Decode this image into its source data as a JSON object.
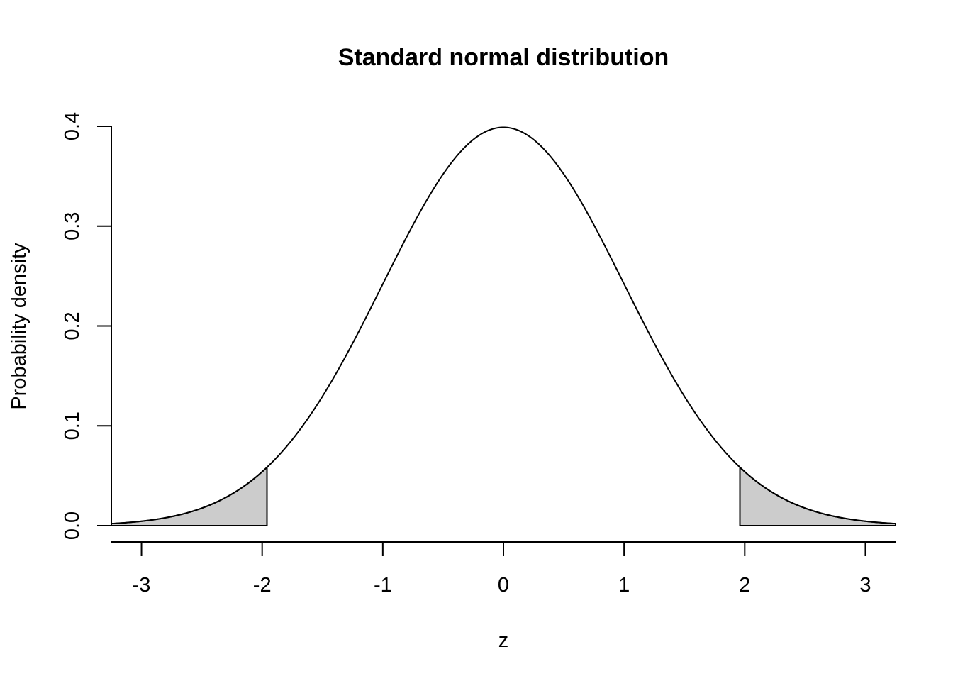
{
  "chart_data": {
    "type": "area",
    "title": "Standard normal distribution",
    "xlabel": "z",
    "ylabel": "Probability density",
    "xlim": [
      -3.25,
      3.25
    ],
    "ylim": [
      0,
      0.4
    ],
    "x_ticks": [
      -3,
      -2,
      -1,
      0,
      1,
      2,
      3
    ],
    "x_tick_labels": [
      "-3",
      "-2",
      "-1",
      "0",
      "1",
      "2",
      "3"
    ],
    "y_ticks": [
      0,
      0.1,
      0.2,
      0.3,
      0.4
    ],
    "y_tick_labels": [
      "0.0",
      "0.1",
      "0.2",
      "0.3",
      "0.4"
    ],
    "curve": {
      "distribution": "normal",
      "mean": 0,
      "sd": 1,
      "x_range": [
        -3.25,
        3.25
      ]
    },
    "shaded_regions": [
      {
        "from": -3.25,
        "to": -1.96
      },
      {
        "from": 1.96,
        "to": 3.25
      }
    ],
    "colors": {
      "curve": "#000000",
      "shade": "#cccccc",
      "background": "#ffffff"
    },
    "grid": false,
    "legend": "none"
  }
}
